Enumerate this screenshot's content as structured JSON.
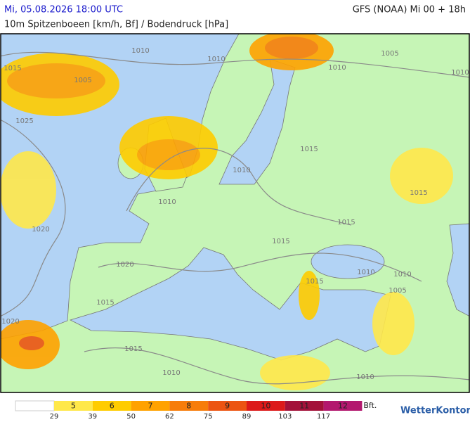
{
  "header": {
    "datetime": "Mi, 05.08.2026 18:00 UTC",
    "model": "GFS (NOAA) Mi 00 + 18h",
    "title": "10m Spitzenboeen [km/h, Bf] / Bodendruck [hPa]"
  },
  "map": {
    "isobar_labels": [
      "1010",
      "1015",
      "1005",
      "1010",
      "1005",
      "1010",
      "1010",
      "1025",
      "1015",
      "1010",
      "1010",
      "1015",
      "1020",
      "1015",
      "1015",
      "1020",
      "1010",
      "1010",
      "1015",
      "1005",
      "1015",
      "1020",
      "1015",
      "1010",
      "1010"
    ]
  },
  "legend": {
    "classes": [
      {
        "bft": 5,
        "kmh_from": 29,
        "color": "#ffe84a"
      },
      {
        "bft": 6,
        "kmh_from": 39,
        "color": "#ffcc00"
      },
      {
        "bft": 7,
        "kmh_from": 50,
        "color": "#ffa200"
      },
      {
        "bft": 8,
        "kmh_from": 62,
        "color": "#f77d0a"
      },
      {
        "bft": 9,
        "kmh_from": 75,
        "color": "#ec5412"
      },
      {
        "bft": 10,
        "kmh_from": 89,
        "color": "#dc1a1a"
      },
      {
        "bft": 11,
        "kmh_from": 103,
        "color": "#a3123a"
      },
      {
        "bft": 12,
        "kmh_from": 117,
        "color": "#b3186e"
      }
    ],
    "unit": "Bft.",
    "brand": "WetterKontor"
  }
}
